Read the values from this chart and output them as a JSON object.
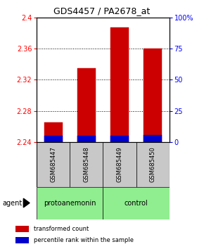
{
  "title": "GDS4457 / PA2678_at",
  "samples": [
    "GSM685447",
    "GSM685448",
    "GSM685449",
    "GSM685450"
  ],
  "red_values": [
    2.265,
    2.335,
    2.387,
    2.36
  ],
  "blue_values": [
    2.248,
    2.248,
    2.248,
    2.249
  ],
  "base_value": 2.24,
  "ylim_left": [
    2.24,
    2.4
  ],
  "ylim_right": [
    0,
    100
  ],
  "yticks_left": [
    2.24,
    2.28,
    2.32,
    2.36,
    2.4
  ],
  "yticks_right": [
    0,
    25,
    50,
    75,
    100
  ],
  "ytick_labels_right": [
    "0",
    "25",
    "50",
    "75",
    "100%"
  ],
  "ytick_labels_left": [
    "2.24",
    "2.28",
    "2.32",
    "2.36",
    "2.4"
  ],
  "group_labels": [
    "protoanemonin",
    "control"
  ],
  "agent_label": "agent",
  "legend_red": "transformed count",
  "legend_blue": "percentile rank within the sample",
  "bar_width": 0.55,
  "red_color": "#CC0000",
  "blue_color": "#0000CC",
  "sample_box_color": "#C8C8C8",
  "group_green_color": "#90EE90",
  "title_fontsize": 9,
  "tick_fontsize": 7,
  "sample_fontsize": 6,
  "group_fontsize": 7,
  "legend_fontsize": 6,
  "agent_fontsize": 7,
  "figsize": [
    2.9,
    3.54
  ],
  "dpi": 100
}
